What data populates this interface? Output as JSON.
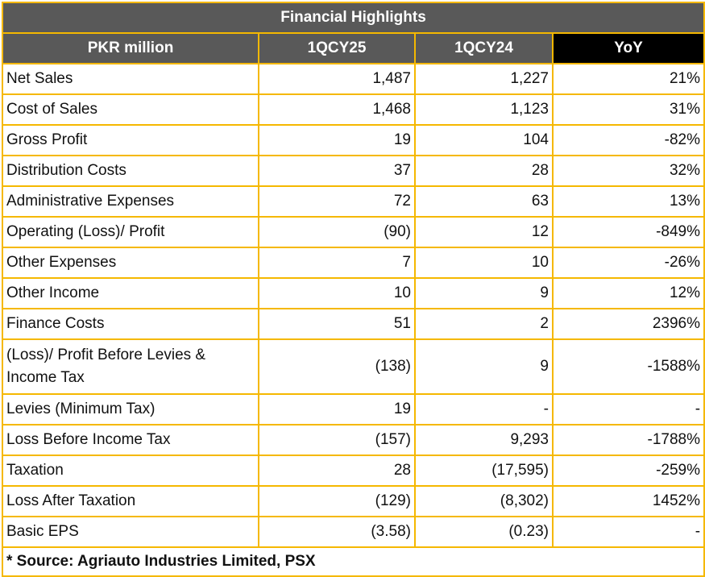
{
  "title": "Financial Highlights",
  "headers": [
    "PKR million",
    "1QCY25",
    "1QCY24",
    "YoY"
  ],
  "rows": [
    {
      "label": "Net Sales",
      "cy25": "1,487",
      "cy24": "1,227",
      "yoy": "21%"
    },
    {
      "label": "Cost of Sales",
      "cy25": "1,468",
      "cy24": "1,123",
      "yoy": "31%"
    },
    {
      "label": "Gross Profit",
      "cy25": "19",
      "cy24": "104",
      "yoy": "-82%"
    },
    {
      "label": "Distribution Costs",
      "cy25": "37",
      "cy24": "28",
      "yoy": "32%"
    },
    {
      "label": "Administrative Expenses",
      "cy25": "72",
      "cy24": "63",
      "yoy": "13%"
    },
    {
      "label": "Operating (Loss)/ Profit",
      "cy25": "(90)",
      "cy24": "12",
      "yoy": "-849%"
    },
    {
      "label": "Other Expenses",
      "cy25": "7",
      "cy24": "10",
      "yoy": "-26%"
    },
    {
      "label": "Other Income",
      "cy25": "10",
      "cy24": "9",
      "yoy": "12%"
    },
    {
      "label": "Finance Costs",
      "cy25": "51",
      "cy24": "2",
      "yoy": "2396%"
    },
    {
      "label": "(Loss)/ Profit Before Levies & Income Tax",
      "cy25": "(138)",
      "cy24": "9",
      "yoy": "-1588%"
    },
    {
      "label": "Levies (Minimum Tax)",
      "cy25": "19",
      "cy24": "-",
      "yoy": "-"
    },
    {
      "label": "Loss Before Income Tax",
      "cy25": "(157)",
      "cy24": "9,293",
      "yoy": "-1788%"
    },
    {
      "label": "Taxation",
      "cy25": "28",
      "cy24": "(17,595)",
      "yoy": "-259%"
    },
    {
      "label": "Loss After Taxation",
      "cy25": "(129)",
      "cy24": "(8,302)",
      "yoy": "1452%"
    },
    {
      "label": "Basic EPS",
      "cy25": "(3.58)",
      "cy24": "(0.23)",
      "yoy": "-"
    }
  ],
  "footer": "* Source: Agriauto Industries Limited, PSX",
  "colors": {
    "border": "#f5b800",
    "header_bg": "#595959",
    "yoy_header_bg": "#000000"
  }
}
